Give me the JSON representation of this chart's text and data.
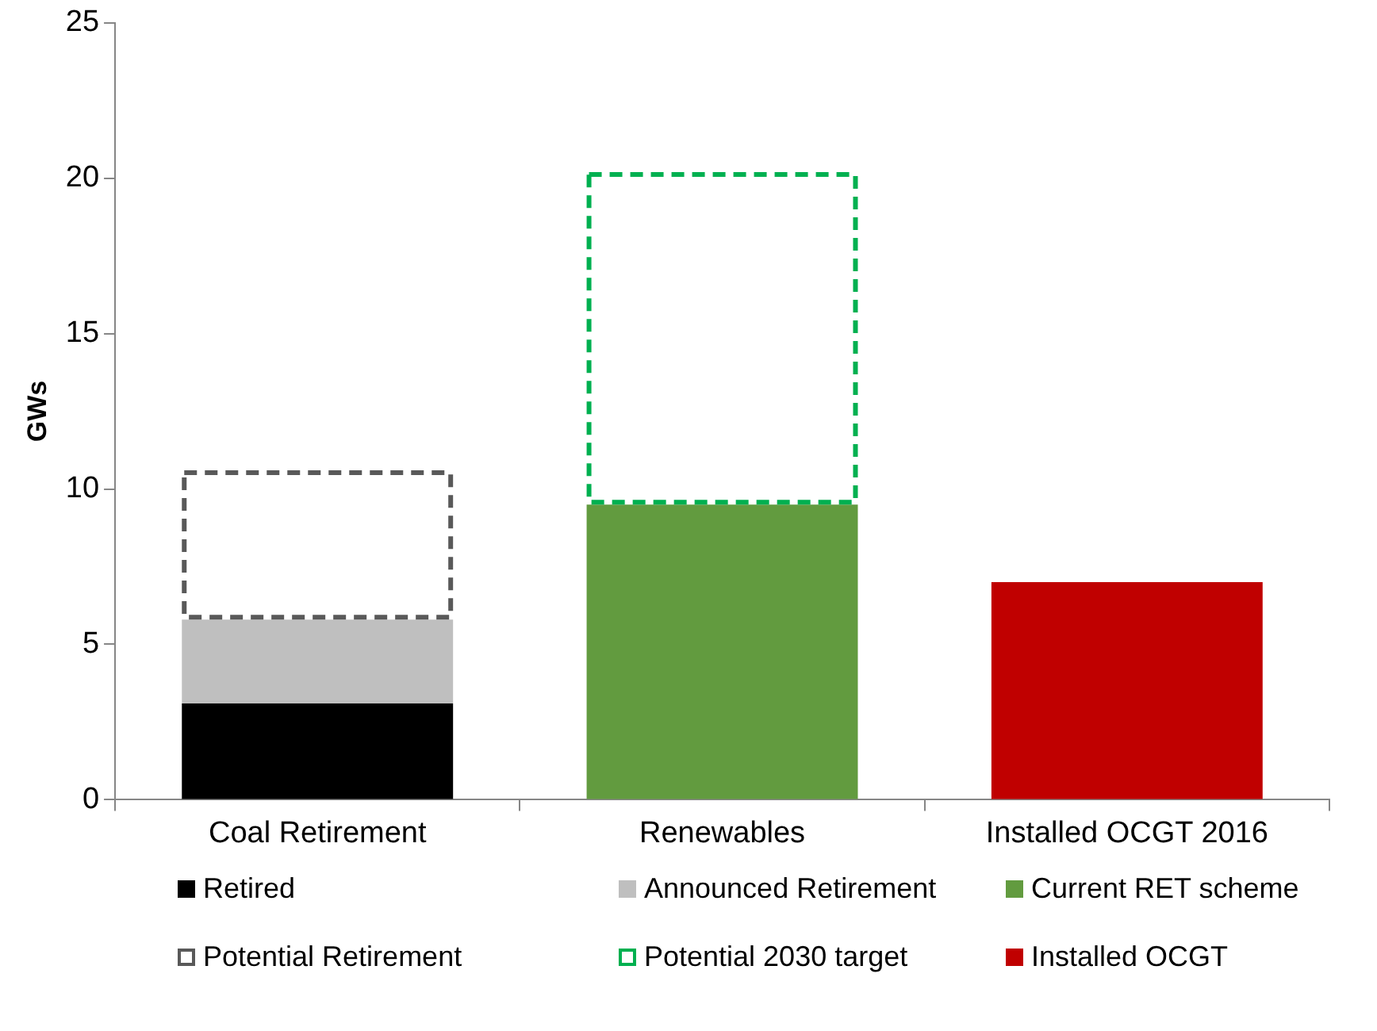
{
  "chart_data": {
    "type": "bar",
    "ylabel": "GWs",
    "categories": [
      "Coal Retirement",
      "Renewables",
      "Installed OCGT 2016"
    ],
    "stacked": true,
    "ylim": [
      0,
      25
    ],
    "yticks": [
      0,
      5,
      10,
      15,
      20,
      25
    ],
    "grid": false,
    "legend": "bottom",
    "series": [
      {
        "name": "Retired",
        "color": "#000000",
        "values": [
          3.1,
          null,
          null
        ]
      },
      {
        "name": "Announced Retirement",
        "color": "#bfbfbf",
        "values": [
          2.7,
          null,
          null
        ]
      },
      {
        "name": "Current RET scheme",
        "color": "#629b3f",
        "values": [
          null,
          9.5,
          null
        ]
      },
      {
        "name": "Potential Retirement",
        "color": "#595959",
        "line_style": "dashed",
        "values": [
          4.8,
          null,
          null
        ]
      },
      {
        "name": "Potential 2030 target",
        "color": "#00b050",
        "line_style": "dashed",
        "values": [
          null,
          10.7,
          null
        ]
      },
      {
        "name": "Installed OCGT",
        "color": "#c00000",
        "values": [
          null,
          null,
          7.0
        ]
      }
    ]
  }
}
